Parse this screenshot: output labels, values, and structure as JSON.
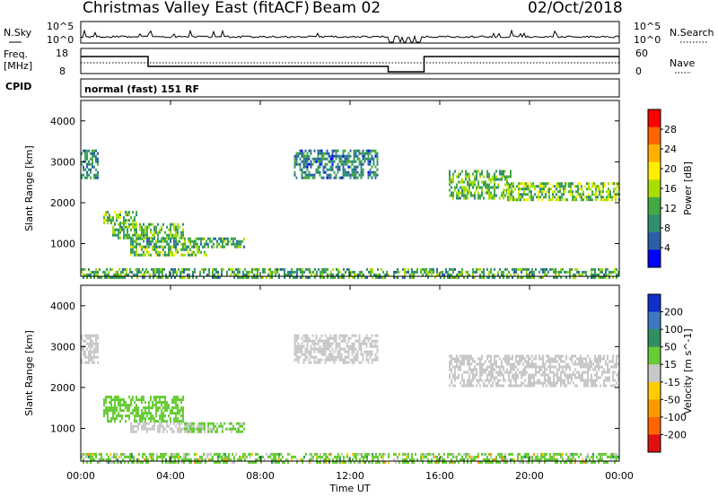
{
  "header": {
    "title": "Christmas Valley East (fitACF)",
    "beam": "Beam 02",
    "date": "02/Oct/2018",
    "mode": "normal (fast) 151 RF",
    "cpid_label": "CPID"
  },
  "top_panels": {
    "nsky_label": "N.Sky",
    "nsearch_label": "N.Search",
    "noise_yticks_left": [
      "10^5",
      "10^0"
    ],
    "noise_yticks_right": [
      "10^5",
      "10^0"
    ],
    "freq_label": "Freq.",
    "freq_unit": "[MHz]",
    "freq_yticks": [
      "18",
      "8"
    ],
    "nave_label": "Nave",
    "nave_yticks": [
      "60",
      "0"
    ]
  },
  "chart_data": [
    {
      "type": "heatmap",
      "panel": "power",
      "ylabel": "Slant Range [km]",
      "ylim": [
        200,
        4500
      ],
      "yticks": [
        "4000",
        "3000",
        "2000",
        "1000"
      ],
      "colorbar": {
        "label": "Power [dB]",
        "ticks": [
          "28",
          "24",
          "20",
          "16",
          "12",
          "8",
          "4"
        ],
        "colors": [
          "#ff0000",
          "#ff6600",
          "#ffb000",
          "#ffee00",
          "#aadd00",
          "#44aa44",
          "#2f8f70",
          "#2a5fa8",
          "#0000ff"
        ]
      },
      "regions": [
        {
          "t0": 0.0,
          "t1": 0.8,
          "r0": 2600,
          "r1": 3300,
          "v": 8
        },
        {
          "t0": 1.0,
          "t1": 2.6,
          "r0": 1500,
          "r1": 1800,
          "v": 14
        },
        {
          "t0": 1.4,
          "t1": 4.6,
          "r0": 1150,
          "r1": 1500,
          "v": 12
        },
        {
          "t0": 2.2,
          "t1": 7.3,
          "r0": 950,
          "r1": 1150,
          "v": 10
        },
        {
          "t0": 2.2,
          "t1": 5.6,
          "r0": 750,
          "r1": 950,
          "v": 14
        },
        {
          "t0": 9.5,
          "t1": 13.2,
          "r0": 2600,
          "r1": 3300,
          "v": 7
        },
        {
          "t0": 16.4,
          "t1": 19.2,
          "r0": 2100,
          "r1": 2800,
          "v": 12
        },
        {
          "t0": 19.0,
          "t1": 24.0,
          "r0": 2050,
          "r1": 2500,
          "v": 14
        },
        {
          "t0": 0.0,
          "t1": 24.0,
          "r0": 200,
          "r1": 400,
          "v": 11
        }
      ],
      "gaps_hours": [
        [
          13.7,
          13.85
        ],
        [
          14.2,
          14.3
        ],
        [
          15.0,
          15.1
        ]
      ]
    },
    {
      "type": "heatmap",
      "panel": "velocity",
      "ylabel": "Slant Range [km]",
      "ylim": [
        200,
        4500
      ],
      "yticks": [
        "4000",
        "3000",
        "2000",
        "1000"
      ],
      "colorbar": {
        "label": "Velocity [m s^-1]",
        "ticks": [
          "200",
          "100",
          "50",
          "15",
          "-15",
          "-50",
          "-100",
          "-200"
        ],
        "colors": [
          "#1030c8",
          "#3f78c0",
          "#2f8f60",
          "#66cc33",
          "#c8c8c8",
          "#ffcc00",
          "#ff9900",
          "#ff6600",
          "#e01010"
        ]
      },
      "regions": [
        {
          "t0": 0.0,
          "t1": 0.8,
          "r0": 2600,
          "r1": 3300,
          "v": 0
        },
        {
          "t0": 1.0,
          "t1": 4.6,
          "r0": 1150,
          "r1": 1800,
          "v": 30
        },
        {
          "t0": 2.2,
          "t1": 5.5,
          "r0": 950,
          "r1": 1150,
          "v": 0
        },
        {
          "t0": 4.6,
          "t1": 7.3,
          "r0": 950,
          "r1": 1150,
          "v": 25
        },
        {
          "t0": 9.5,
          "t1": 13.2,
          "r0": 2600,
          "r1": 3300,
          "v": 0
        },
        {
          "t0": 16.4,
          "t1": 24.0,
          "r0": 2050,
          "r1": 2800,
          "v": 0
        },
        {
          "t0": 0.0,
          "t1": 24.0,
          "r0": 200,
          "r1": 400,
          "v": 25
        }
      ],
      "gaps_hours": [
        [
          13.7,
          13.85
        ],
        [
          14.2,
          14.3
        ],
        [
          15.0,
          15.1
        ]
      ]
    }
  ],
  "x_axis": {
    "label": "Time UT",
    "range_hours": [
      0,
      24
    ],
    "ticks": [
      "00:00",
      "04:00",
      "08:00",
      "12:00",
      "16:00",
      "20:00",
      "00:00"
    ]
  }
}
